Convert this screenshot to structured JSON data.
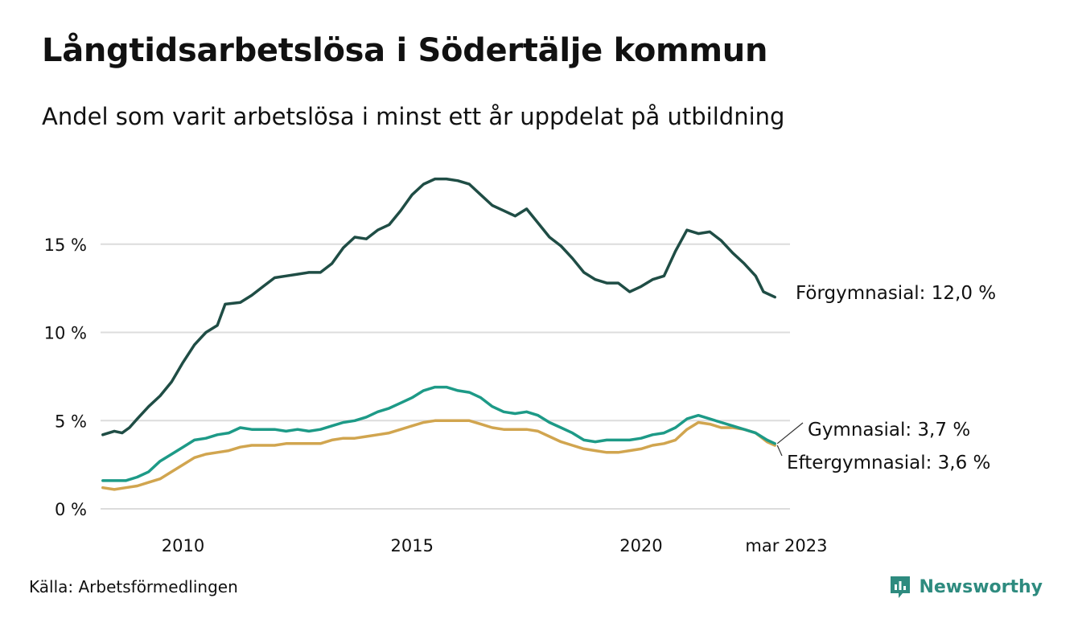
{
  "chart_data": {
    "type": "line",
    "title": "Långtidsarbetslösa i Södertälje kommun",
    "subtitle": "Andel som varit arbetslösa i minst ett år uppdelat på utbildning",
    "xlim": [
      2008.2,
      2023.25
    ],
    "ylim": [
      0,
      19.5
    ],
    "x_ticks": [
      {
        "value": 2010,
        "label": "2010"
      },
      {
        "value": 2015,
        "label": "2015"
      },
      {
        "value": 2020,
        "label": "2020"
      },
      {
        "value": 2023.17,
        "label": "mar 2023"
      }
    ],
    "y_ticks": [
      {
        "value": 0,
        "label": "0 %"
      },
      {
        "value": 5,
        "label": "5 %"
      },
      {
        "value": 10,
        "label": "10 %"
      },
      {
        "value": 15,
        "label": "15 %"
      }
    ],
    "grid": true,
    "series": [
      {
        "name": "Förgymnasial",
        "end_label": "Förgymnasial: 12,0 %",
        "color": "#1f4d45",
        "points": [
          [
            2008.25,
            4.2
          ],
          [
            2008.5,
            4.4
          ],
          [
            2008.67,
            4.3
          ],
          [
            2008.83,
            4.6
          ],
          [
            2009.0,
            5.1
          ],
          [
            2009.25,
            5.8
          ],
          [
            2009.5,
            6.4
          ],
          [
            2009.75,
            7.2
          ],
          [
            2010.0,
            8.3
          ],
          [
            2010.25,
            9.3
          ],
          [
            2010.5,
            10.0
          ],
          [
            2010.75,
            10.4
          ],
          [
            2010.92,
            11.6
          ],
          [
            2011.25,
            11.7
          ],
          [
            2011.5,
            12.1
          ],
          [
            2011.75,
            12.6
          ],
          [
            2012.0,
            13.1
          ],
          [
            2012.25,
            13.2
          ],
          [
            2012.5,
            13.3
          ],
          [
            2012.75,
            13.4
          ],
          [
            2013.0,
            13.4
          ],
          [
            2013.25,
            13.9
          ],
          [
            2013.5,
            14.8
          ],
          [
            2013.75,
            15.4
          ],
          [
            2014.0,
            15.3
          ],
          [
            2014.25,
            15.8
          ],
          [
            2014.5,
            16.1
          ],
          [
            2014.75,
            16.9
          ],
          [
            2015.0,
            17.8
          ],
          [
            2015.25,
            18.4
          ],
          [
            2015.5,
            18.7
          ],
          [
            2015.75,
            18.7
          ],
          [
            2016.0,
            18.6
          ],
          [
            2016.25,
            18.4
          ],
          [
            2016.5,
            17.8
          ],
          [
            2016.75,
            17.2
          ],
          [
            2017.0,
            16.9
          ],
          [
            2017.25,
            16.6
          ],
          [
            2017.5,
            17.0
          ],
          [
            2017.75,
            16.2
          ],
          [
            2018.0,
            15.4
          ],
          [
            2018.25,
            14.9
          ],
          [
            2018.5,
            14.2
          ],
          [
            2018.75,
            13.4
          ],
          [
            2019.0,
            13.0
          ],
          [
            2019.25,
            12.8
          ],
          [
            2019.5,
            12.8
          ],
          [
            2019.75,
            12.3
          ],
          [
            2020.0,
            12.6
          ],
          [
            2020.25,
            13.0
          ],
          [
            2020.5,
            13.2
          ],
          [
            2020.75,
            14.6
          ],
          [
            2021.0,
            15.8
          ],
          [
            2021.25,
            15.6
          ],
          [
            2021.5,
            15.7
          ],
          [
            2021.75,
            15.2
          ],
          [
            2022.0,
            14.5
          ],
          [
            2022.25,
            13.9
          ],
          [
            2022.5,
            13.2
          ],
          [
            2022.67,
            12.3
          ],
          [
            2022.92,
            12.0
          ]
        ]
      },
      {
        "name": "Gymnasial",
        "end_label": "Gymnasial:  3,7 %",
        "color": "#1d9a87",
        "points": [
          [
            2008.25,
            1.6
          ],
          [
            2008.5,
            1.6
          ],
          [
            2008.75,
            1.6
          ],
          [
            2009.0,
            1.8
          ],
          [
            2009.25,
            2.1
          ],
          [
            2009.5,
            2.7
          ],
          [
            2009.75,
            3.1
          ],
          [
            2010.0,
            3.5
          ],
          [
            2010.25,
            3.9
          ],
          [
            2010.5,
            4.0
          ],
          [
            2010.75,
            4.2
          ],
          [
            2011.0,
            4.3
          ],
          [
            2011.25,
            4.6
          ],
          [
            2011.5,
            4.5
          ],
          [
            2011.75,
            4.5
          ],
          [
            2012.0,
            4.5
          ],
          [
            2012.25,
            4.4
          ],
          [
            2012.5,
            4.5
          ],
          [
            2012.75,
            4.4
          ],
          [
            2013.0,
            4.5
          ],
          [
            2013.25,
            4.7
          ],
          [
            2013.5,
            4.9
          ],
          [
            2013.75,
            5.0
          ],
          [
            2014.0,
            5.2
          ],
          [
            2014.25,
            5.5
          ],
          [
            2014.5,
            5.7
          ],
          [
            2014.75,
            6.0
          ],
          [
            2015.0,
            6.3
          ],
          [
            2015.25,
            6.7
          ],
          [
            2015.5,
            6.9
          ],
          [
            2015.75,
            6.9
          ],
          [
            2016.0,
            6.7
          ],
          [
            2016.25,
            6.6
          ],
          [
            2016.5,
            6.3
          ],
          [
            2016.75,
            5.8
          ],
          [
            2017.0,
            5.5
          ],
          [
            2017.25,
            5.4
          ],
          [
            2017.5,
            5.5
          ],
          [
            2017.75,
            5.3
          ],
          [
            2018.0,
            4.9
          ],
          [
            2018.25,
            4.6
          ],
          [
            2018.5,
            4.3
          ],
          [
            2018.75,
            3.9
          ],
          [
            2019.0,
            3.8
          ],
          [
            2019.25,
            3.9
          ],
          [
            2019.5,
            3.9
          ],
          [
            2019.75,
            3.9
          ],
          [
            2020.0,
            4.0
          ],
          [
            2020.25,
            4.2
          ],
          [
            2020.5,
            4.3
          ],
          [
            2020.75,
            4.6
          ],
          [
            2021.0,
            5.1
          ],
          [
            2021.25,
            5.3
          ],
          [
            2021.5,
            5.1
          ],
          [
            2021.75,
            4.9
          ],
          [
            2022.0,
            4.7
          ],
          [
            2022.25,
            4.5
          ],
          [
            2022.5,
            4.3
          ],
          [
            2022.75,
            3.9
          ],
          [
            2022.92,
            3.7
          ]
        ]
      },
      {
        "name": "Eftergymnasial",
        "end_label": "Eftergymnasial:  3,6 %",
        "color": "#d1a54f",
        "points": [
          [
            2008.25,
            1.2
          ],
          [
            2008.5,
            1.1
          ],
          [
            2008.75,
            1.2
          ],
          [
            2009.0,
            1.3
          ],
          [
            2009.25,
            1.5
          ],
          [
            2009.5,
            1.7
          ],
          [
            2009.75,
            2.1
          ],
          [
            2010.0,
            2.5
          ],
          [
            2010.25,
            2.9
          ],
          [
            2010.5,
            3.1
          ],
          [
            2010.75,
            3.2
          ],
          [
            2011.0,
            3.3
          ],
          [
            2011.25,
            3.5
          ],
          [
            2011.5,
            3.6
          ],
          [
            2011.75,
            3.6
          ],
          [
            2012.0,
            3.6
          ],
          [
            2012.25,
            3.7
          ],
          [
            2012.5,
            3.7
          ],
          [
            2012.75,
            3.7
          ],
          [
            2013.0,
            3.7
          ],
          [
            2013.25,
            3.9
          ],
          [
            2013.5,
            4.0
          ],
          [
            2013.75,
            4.0
          ],
          [
            2014.0,
            4.1
          ],
          [
            2014.25,
            4.2
          ],
          [
            2014.5,
            4.3
          ],
          [
            2014.75,
            4.5
          ],
          [
            2015.0,
            4.7
          ],
          [
            2015.25,
            4.9
          ],
          [
            2015.5,
            5.0
          ],
          [
            2015.75,
            5.0
          ],
          [
            2016.0,
            5.0
          ],
          [
            2016.25,
            5.0
          ],
          [
            2016.5,
            4.8
          ],
          [
            2016.75,
            4.6
          ],
          [
            2017.0,
            4.5
          ],
          [
            2017.25,
            4.5
          ],
          [
            2017.5,
            4.5
          ],
          [
            2017.75,
            4.4
          ],
          [
            2018.0,
            4.1
          ],
          [
            2018.25,
            3.8
          ],
          [
            2018.5,
            3.6
          ],
          [
            2018.75,
            3.4
          ],
          [
            2019.0,
            3.3
          ],
          [
            2019.25,
            3.2
          ],
          [
            2019.5,
            3.2
          ],
          [
            2019.75,
            3.3
          ],
          [
            2020.0,
            3.4
          ],
          [
            2020.25,
            3.6
          ],
          [
            2020.5,
            3.7
          ],
          [
            2020.75,
            3.9
          ],
          [
            2021.0,
            4.5
          ],
          [
            2021.25,
            4.9
          ],
          [
            2021.5,
            4.8
          ],
          [
            2021.75,
            4.6
          ],
          [
            2022.0,
            4.6
          ],
          [
            2022.25,
            4.5
          ],
          [
            2022.5,
            4.3
          ],
          [
            2022.75,
            3.8
          ],
          [
            2022.92,
            3.6
          ]
        ]
      }
    ]
  },
  "source": "Källa: Arbetsförmedlingen",
  "brand": {
    "name": "Newsworthy",
    "icon": "newsworthy-logo-icon",
    "color": "#2e8b7f"
  }
}
